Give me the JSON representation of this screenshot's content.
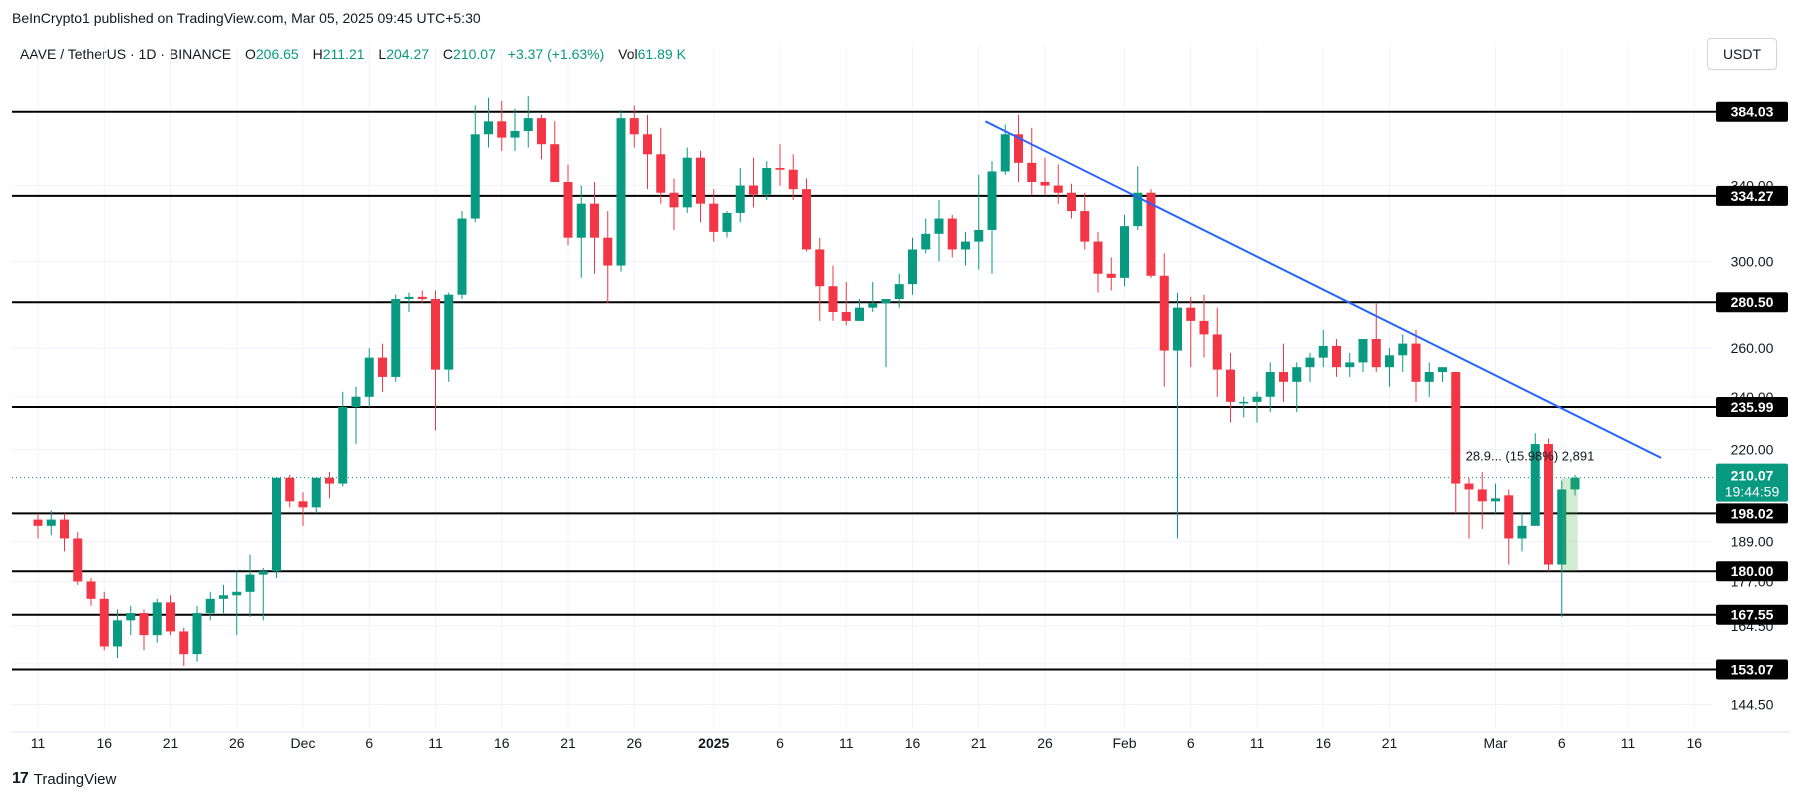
{
  "header": {
    "publisher_line": "BeInCrypto1 published on TradingView.com, Mar 05, 2025 09:45 UTC+5:30"
  },
  "legend": {
    "symbol": "AAVE / TetherUS · 1D · BINANCE",
    "o_label": "O",
    "o": "206.65",
    "h_label": "H",
    "h": "211.21",
    "l_label": "L",
    "l": "204.27",
    "c_label": "C",
    "c": "210.07",
    "change": "+3.37 (+1.63%)",
    "vol_label": "Vol",
    "vol": "61.89 K"
  },
  "currency_button": "USDT",
  "footer": {
    "logo_text": "TradingView"
  },
  "chart_data": {
    "type": "candlestick",
    "symbol": "AAVE/USDT",
    "timeframe": "1D",
    "exchange": "BINANCE",
    "yscale": "log",
    "ylim": [
      139,
      408
    ],
    "colors": {
      "up": "#089981",
      "down": "#f23645",
      "trendline": "#2962ff",
      "level": "#000000"
    },
    "price_ticks": [
      "384.03",
      "340.00",
      "300.00",
      "260.00",
      "240.00",
      "220.00",
      "189.00",
      "177.00",
      "164.50",
      "154.50",
      "144.50"
    ],
    "x_ticks": [
      "11",
      "16",
      "21",
      "26",
      "Dec",
      "6",
      "11",
      "16",
      "21",
      "26",
      "2025",
      "6",
      "11",
      "16",
      "21",
      "26",
      "Feb",
      "6",
      "11",
      "16",
      "21",
      "Mar",
      "6",
      "11",
      "16"
    ],
    "x_tick_days": [
      0,
      5,
      10,
      15,
      20,
      25,
      30,
      35,
      40,
      45,
      51,
      56,
      61,
      66,
      71,
      76,
      82,
      87,
      92,
      97,
      102,
      110,
      115,
      120,
      125
    ],
    "levels": [
      {
        "label": "384.03",
        "value": 384.03
      },
      {
        "label": "334.27",
        "value": 334.27
      },
      {
        "label": "280.50",
        "value": 280.5
      },
      {
        "label": "235.99",
        "value": 235.99
      },
      {
        "label": "198.02",
        "value": 198.02
      },
      {
        "label": "180.00",
        "value": 180.0
      },
      {
        "label": "167.55",
        "value": 167.55
      },
      {
        "label": "153.07",
        "value": 153.07
      }
    ],
    "last_price": {
      "value": 210.07,
      "label": "210.07",
      "countdown": "19:44:59"
    },
    "trendline": {
      "from": {
        "day": 71.5,
        "value": 378
      },
      "to": {
        "day": 122.5,
        "value": 217
      }
    },
    "measure_label": "28.9... (15.98%) 2,891",
    "candles": [
      [
        196,
        198,
        190,
        194
      ],
      [
        194,
        199,
        191,
        196
      ],
      [
        196,
        198,
        186,
        190
      ],
      [
        190,
        192,
        176,
        177
      ],
      [
        177,
        178,
        170,
        172
      ],
      [
        172,
        174,
        158,
        159
      ],
      [
        159,
        169,
        156,
        166
      ],
      [
        166,
        170,
        162,
        168
      ],
      [
        168,
        169,
        158,
        162
      ],
      [
        162,
        172,
        160,
        171
      ],
      [
        171,
        173,
        162,
        163
      ],
      [
        163,
        164,
        154,
        157
      ],
      [
        157,
        170,
        155,
        168
      ],
      [
        168,
        174,
        166,
        172
      ],
      [
        172,
        176,
        168,
        173
      ],
      [
        173,
        180,
        162,
        174
      ],
      [
        174,
        185,
        167,
        179
      ],
      [
        179,
        181,
        166,
        180
      ],
      [
        180,
        210,
        178,
        210
      ],
      [
        210,
        211,
        200,
        202
      ],
      [
        202,
        205,
        194,
        200
      ],
      [
        200,
        210,
        198,
        210
      ],
      [
        210,
        212,
        203,
        208
      ],
      [
        208,
        242,
        207,
        236
      ],
      [
        236,
        244,
        222,
        240
      ],
      [
        240,
        260,
        236,
        256
      ],
      [
        256,
        262,
        242,
        248
      ],
      [
        248,
        284,
        246,
        282
      ],
      [
        282,
        285,
        276,
        283
      ],
      [
        283,
        286,
        280,
        282
      ],
      [
        282,
        286,
        227,
        251
      ],
      [
        251,
        285,
        246,
        284
      ],
      [
        284,
        326,
        282,
        322
      ],
      [
        322,
        388,
        320,
        370
      ],
      [
        370,
        393,
        362,
        378
      ],
      [
        378,
        391,
        360,
        368
      ],
      [
        368,
        386,
        360,
        372
      ],
      [
        372,
        394,
        362,
        380
      ],
      [
        380,
        382,
        355,
        364
      ],
      [
        364,
        378,
        344,
        342
      ],
      [
        342,
        352,
        308,
        312
      ],
      [
        312,
        340,
        292,
        330
      ],
      [
        330,
        342,
        294,
        312
      ],
      [
        312,
        326,
        280,
        298
      ],
      [
        298,
        385,
        295,
        380
      ],
      [
        380,
        388,
        362,
        370
      ],
      [
        370,
        382,
        338,
        358
      ],
      [
        358,
        374,
        330,
        336
      ],
      [
        336,
        344,
        316,
        328
      ],
      [
        328,
        362,
        325,
        356
      ],
      [
        356,
        360,
        320,
        330
      ],
      [
        330,
        338,
        310,
        315
      ],
      [
        315,
        326,
        312,
        325
      ],
      [
        325,
        350,
        320,
        340
      ],
      [
        340,
        356,
        328,
        335
      ],
      [
        335,
        354,
        332,
        350
      ],
      [
        350,
        364,
        340,
        349
      ],
      [
        349,
        358,
        332,
        338
      ],
      [
        338,
        344,
        305,
        306
      ],
      [
        306,
        312,
        272,
        288
      ],
      [
        288,
        298,
        272,
        276
      ],
      [
        276,
        290,
        270,
        272
      ],
      [
        272,
        282,
        272,
        278
      ],
      [
        278,
        290,
        276,
        280
      ],
      [
        280,
        282,
        252,
        282
      ],
      [
        282,
        294,
        278,
        289
      ],
      [
        289,
        312,
        284,
        306
      ],
      [
        306,
        322,
        304,
        314
      ],
      [
        314,
        332,
        300,
        322
      ],
      [
        322,
        324,
        302,
        306
      ],
      [
        306,
        315,
        298,
        310
      ],
      [
        310,
        346,
        296,
        316
      ],
      [
        316,
        354,
        294,
        348
      ],
      [
        348,
        376,
        346,
        370
      ],
      [
        370,
        382,
        342,
        353
      ],
      [
        353,
        374,
        335,
        342
      ],
      [
        342,
        356,
        335,
        340
      ],
      [
        340,
        352,
        330,
        336
      ],
      [
        336,
        341,
        322,
        326
      ],
      [
        326,
        336,
        306,
        310
      ],
      [
        310,
        315,
        285,
        294
      ],
      [
        294,
        302,
        286,
        292
      ],
      [
        292,
        324,
        288,
        318
      ],
      [
        318,
        351,
        316,
        336
      ],
      [
        336,
        338,
        292,
        293
      ],
      [
        293,
        304,
        244,
        259
      ],
      [
        259,
        285,
        190,
        278
      ],
      [
        278,
        283,
        252,
        272
      ],
      [
        272,
        284,
        256,
        266
      ],
      [
        266,
        278,
        240,
        251
      ],
      [
        251,
        258,
        230,
        238
      ],
      [
        238,
        240,
        232,
        238
      ],
      [
        238,
        242,
        230,
        240
      ],
      [
        240,
        254,
        234,
        250
      ],
      [
        250,
        262,
        238,
        246
      ],
      [
        246,
        254,
        234,
        252
      ],
      [
        252,
        258,
        246,
        256
      ],
      [
        256,
        268,
        252,
        261
      ],
      [
        261,
        264,
        248,
        252
      ],
      [
        252,
        258,
        248,
        254
      ],
      [
        254,
        262,
        250,
        264
      ],
      [
        264,
        280,
        250,
        252
      ],
      [
        252,
        260,
        244,
        257
      ],
      [
        257,
        266,
        250,
        262
      ],
      [
        262,
        268,
        238,
        246
      ],
      [
        246,
        254,
        240,
        250
      ],
      [
        250,
        252,
        246,
        252
      ],
      [
        250,
        250,
        198,
        208
      ],
      [
        208,
        210,
        190,
        206
      ],
      [
        206,
        212,
        193,
        202
      ],
      [
        202,
        208,
        198,
        203
      ],
      [
        204,
        206,
        182,
        190
      ],
      [
        190,
        198,
        186,
        194
      ],
      [
        194,
        226,
        194,
        222
      ],
      [
        222,
        224,
        180,
        182
      ],
      [
        182,
        209,
        167,
        206
      ],
      [
        206,
        211,
        204,
        210
      ]
    ]
  }
}
